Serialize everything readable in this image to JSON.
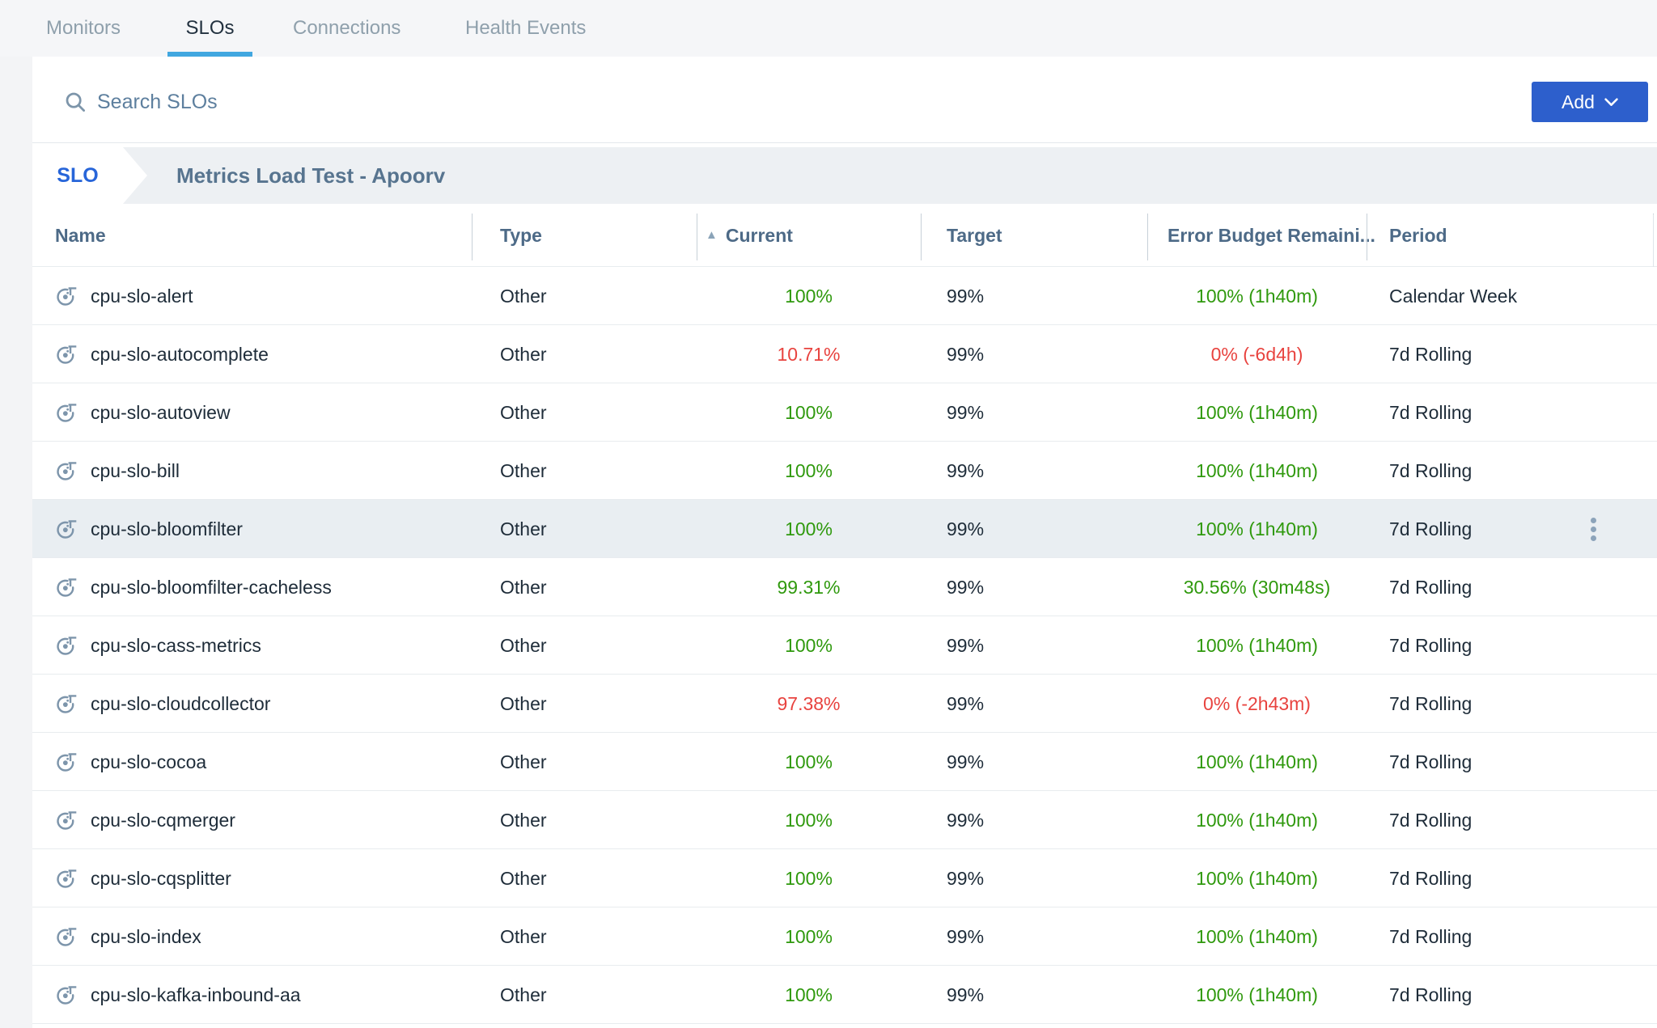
{
  "tabs": [
    {
      "label": "Monitors",
      "active": false
    },
    {
      "label": "SLOs",
      "active": true
    },
    {
      "label": "Connections",
      "active": false
    },
    {
      "label": "Health Events",
      "active": false
    }
  ],
  "search": {
    "placeholder": "Search SLOs"
  },
  "add_button": {
    "label": "Add"
  },
  "breadcrumb": {
    "chip": "SLO",
    "title": "Metrics Load Test - Apoorv"
  },
  "table": {
    "columns": [
      "Name",
      "Type",
      "Current",
      "Target",
      "Error Budget Remaini...",
      "Period"
    ],
    "sort_column": "Current",
    "sort_direction": "asc",
    "rows": [
      {
        "name": "cpu-slo-alert",
        "type": "Other",
        "current": "100%",
        "current_status": "good",
        "target": "99%",
        "error_budget": "100% (1h40m)",
        "error_budget_status": "good",
        "period": "Calendar Week",
        "highlighted": false
      },
      {
        "name": "cpu-slo-autocomplete",
        "type": "Other",
        "current": "10.71%",
        "current_status": "bad",
        "target": "99%",
        "error_budget": "0% (-6d4h)",
        "error_budget_status": "bad",
        "period": "7d Rolling",
        "highlighted": false
      },
      {
        "name": "cpu-slo-autoview",
        "type": "Other",
        "current": "100%",
        "current_status": "good",
        "target": "99%",
        "error_budget": "100% (1h40m)",
        "error_budget_status": "good",
        "period": "7d Rolling",
        "highlighted": false
      },
      {
        "name": "cpu-slo-bill",
        "type": "Other",
        "current": "100%",
        "current_status": "good",
        "target": "99%",
        "error_budget": "100% (1h40m)",
        "error_budget_status": "good",
        "period": "7d Rolling",
        "highlighted": false
      },
      {
        "name": "cpu-slo-bloomfilter",
        "type": "Other",
        "current": "100%",
        "current_status": "good",
        "target": "99%",
        "error_budget": "100% (1h40m)",
        "error_budget_status": "good",
        "period": "7d Rolling",
        "highlighted": true
      },
      {
        "name": "cpu-slo-bloomfilter-cacheless",
        "type": "Other",
        "current": "99.31%",
        "current_status": "good",
        "target": "99%",
        "error_budget": "30.56% (30m48s)",
        "error_budget_status": "good",
        "period": "7d Rolling",
        "highlighted": false
      },
      {
        "name": "cpu-slo-cass-metrics",
        "type": "Other",
        "current": "100%",
        "current_status": "good",
        "target": "99%",
        "error_budget": "100% (1h40m)",
        "error_budget_status": "good",
        "period": "7d Rolling",
        "highlighted": false
      },
      {
        "name": "cpu-slo-cloudcollector",
        "type": "Other",
        "current": "97.38%",
        "current_status": "bad",
        "target": "99%",
        "error_budget": "0% (-2h43m)",
        "error_budget_status": "bad",
        "period": "7d Rolling",
        "highlighted": false
      },
      {
        "name": "cpu-slo-cocoa",
        "type": "Other",
        "current": "100%",
        "current_status": "good",
        "target": "99%",
        "error_budget": "100% (1h40m)",
        "error_budget_status": "good",
        "period": "7d Rolling",
        "highlighted": false
      },
      {
        "name": "cpu-slo-cqmerger",
        "type": "Other",
        "current": "100%",
        "current_status": "good",
        "target": "99%",
        "error_budget": "100% (1h40m)",
        "error_budget_status": "good",
        "period": "7d Rolling",
        "highlighted": false
      },
      {
        "name": "cpu-slo-cqsplitter",
        "type": "Other",
        "current": "100%",
        "current_status": "good",
        "target": "99%",
        "error_budget": "100% (1h40m)",
        "error_budget_status": "good",
        "period": "7d Rolling",
        "highlighted": false
      },
      {
        "name": "cpu-slo-index",
        "type": "Other",
        "current": "100%",
        "current_status": "good",
        "target": "99%",
        "error_budget": "100% (1h40m)",
        "error_budget_status": "good",
        "period": "7d Rolling",
        "highlighted": false
      },
      {
        "name": "cpu-slo-kafka-inbound-aa",
        "type": "Other",
        "current": "100%",
        "current_status": "good",
        "target": "99%",
        "error_budget": "100% (1h40m)",
        "error_budget_status": "good",
        "period": "7d Rolling",
        "highlighted": false
      }
    ]
  },
  "colors": {
    "good": "#2f990d",
    "bad": "#e8433f",
    "accent": "#2d5fcc",
    "link": "#2765d9",
    "tab_underline": "#41a7e0",
    "slate_header": "#4d6a87",
    "body_text": "#1e2c39"
  }
}
